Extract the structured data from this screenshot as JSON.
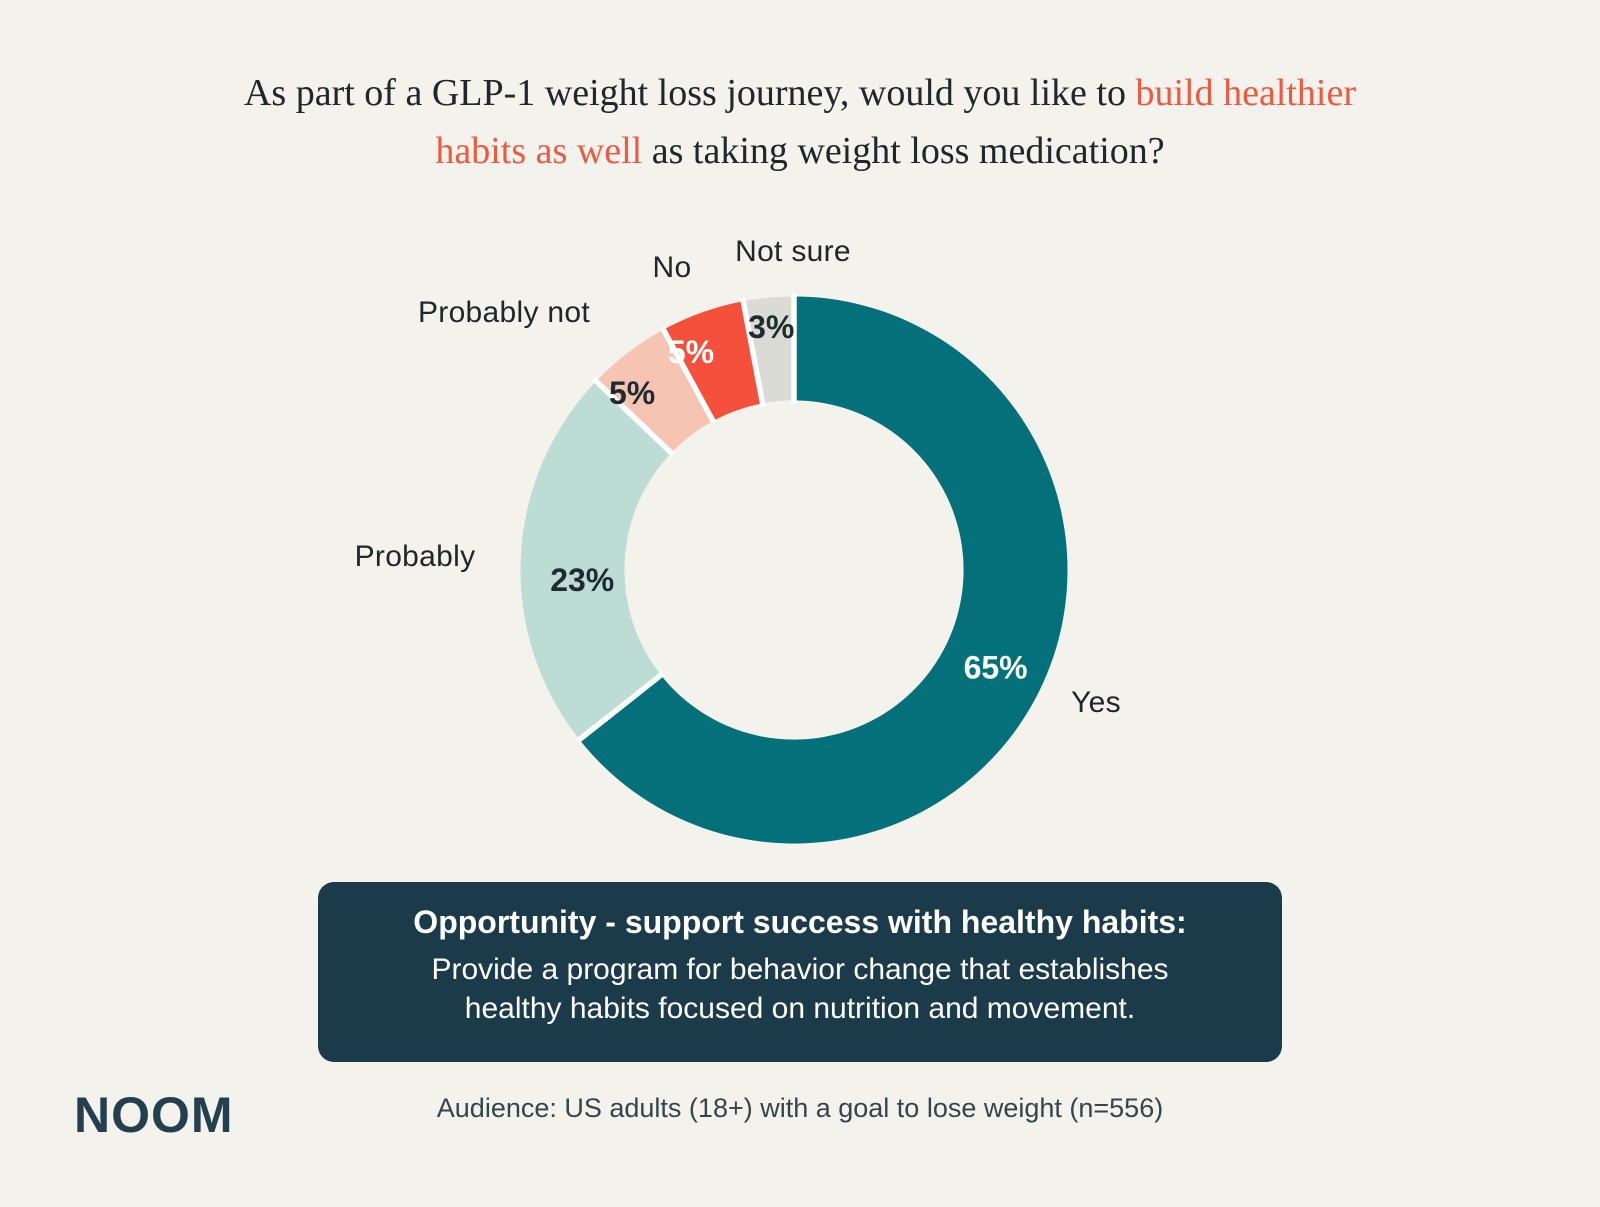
{
  "colors": {
    "bg": "#F4F2EC",
    "ink": "#20262A",
    "accent": "#EF5940",
    "box-bg": "#1B3A4A",
    "brand": "#24404E",
    "footnote": "#36444B"
  },
  "title": {
    "line1_text": "As part of a GLP-1 weight loss journey, would you like to",
    "line1_accent": "build healthier",
    "line2_accent": "habits as well",
    "line2_text": "as taking weight loss medication?"
  },
  "chart_data": {
    "type": "pie",
    "subtype": "donut",
    "question": "As part of a GLP-1 weight loss journey, would you like to build healthier habits as well as taking weight loss medication?",
    "categories": [
      "Yes",
      "Probably",
      "Probably not",
      "No",
      "Not sure"
    ],
    "values": [
      65,
      23,
      5,
      5,
      3
    ],
    "slices": [
      {
        "label": "Yes",
        "value": 65,
        "pct_label": "65%",
        "color": "#047079",
        "pct_text_color": "#FFFFFF"
      },
      {
        "label": "Probably",
        "value": 23,
        "pct_label": "23%",
        "color": "#BCDCD4",
        "pct_text_color": "#1F2B30"
      },
      {
        "label": "Probably not",
        "value": 5,
        "pct_label": "5%",
        "color": "#F6C4B3",
        "pct_text_color": "#1F2B30"
      },
      {
        "label": "No",
        "value": 5,
        "pct_label": "5%",
        "color": "#F5503C",
        "pct_text_color": "#FFFFFF"
      },
      {
        "label": "Not sure",
        "value": 3,
        "pct_label": "3%",
        "color": "#DBDBD5",
        "pct_text_color": "#1F2B30"
      }
    ],
    "start_angle_deg": 0,
    "direction": "clockwise",
    "donut_hole_ratio": 0.62,
    "separator_color": "#FFFFFF",
    "legend_position": "labels-around-donut"
  },
  "callout": {
    "heading": "Opportunity - support success with healthy habits:",
    "body": "Provide a program for behavior change that establishes healthy habits focused on nutrition and movement."
  },
  "footer": {
    "brand": "NOOM",
    "audience": "Audience: US adults (18+) with a goal to lose weight (n=556)"
  }
}
